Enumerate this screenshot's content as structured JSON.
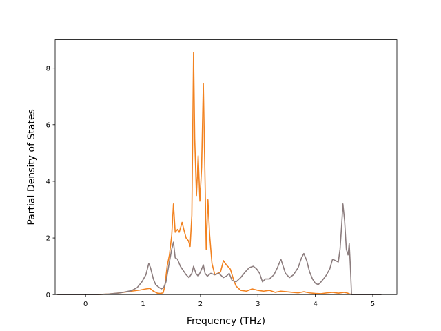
{
  "chart_data": {
    "type": "line",
    "title": "",
    "xlabel": "Frequency (THz)",
    "ylabel": "Partial Density of States",
    "xlim": [
      -0.53,
      5.42
    ],
    "ylim": [
      0,
      9.0
    ],
    "xticks": [
      0,
      1,
      2,
      3,
      4,
      5
    ],
    "yticks": [
      0,
      2,
      4,
      6,
      8
    ],
    "grid": false,
    "legend": "none",
    "series": [
      {
        "color": "#f28220",
        "points": [
          [
            -0.49,
            0
          ],
          [
            0.0,
            0
          ],
          [
            0.2,
            0.0
          ],
          [
            0.4,
            0.02
          ],
          [
            0.6,
            0.06
          ],
          [
            0.8,
            0.12
          ],
          [
            0.95,
            0.16
          ],
          [
            1.05,
            0.2
          ],
          [
            1.12,
            0.22
          ],
          [
            1.18,
            0.12
          ],
          [
            1.25,
            0.05
          ],
          [
            1.3,
            0.04
          ],
          [
            1.35,
            0.06
          ],
          [
            1.38,
            0.3
          ],
          [
            1.42,
            1.0
          ],
          [
            1.46,
            1.4
          ],
          [
            1.5,
            2.1
          ],
          [
            1.53,
            3.2
          ],
          [
            1.56,
            2.2
          ],
          [
            1.6,
            2.3
          ],
          [
            1.63,
            2.2
          ],
          [
            1.68,
            2.55
          ],
          [
            1.71,
            2.3
          ],
          [
            1.75,
            2.0
          ],
          [
            1.79,
            1.9
          ],
          [
            1.82,
            1.7
          ],
          [
            1.85,
            2.8
          ],
          [
            1.88,
            8.55
          ],
          [
            1.9,
            5.5
          ],
          [
            1.93,
            3.5
          ],
          [
            1.96,
            4.9
          ],
          [
            1.99,
            3.3
          ],
          [
            2.02,
            4.5
          ],
          [
            2.05,
            7.45
          ],
          [
            2.08,
            4.0
          ],
          [
            2.1,
            1.6
          ],
          [
            2.13,
            3.35
          ],
          [
            2.16,
            2.1
          ],
          [
            2.2,
            1.1
          ],
          [
            2.25,
            0.7
          ],
          [
            2.3,
            0.75
          ],
          [
            2.35,
            0.8
          ],
          [
            2.4,
            1.2
          ],
          [
            2.45,
            1.05
          ],
          [
            2.52,
            0.9
          ],
          [
            2.58,
            0.5
          ],
          [
            2.62,
            0.3
          ],
          [
            2.7,
            0.15
          ],
          [
            2.8,
            0.12
          ],
          [
            2.9,
            0.2
          ],
          [
            3.0,
            0.15
          ],
          [
            3.1,
            0.12
          ],
          [
            3.2,
            0.15
          ],
          [
            3.3,
            0.08
          ],
          [
            3.4,
            0.12
          ],
          [
            3.5,
            0.1
          ],
          [
            3.6,
            0.08
          ],
          [
            3.7,
            0.06
          ],
          [
            3.8,
            0.1
          ],
          [
            3.9,
            0.06
          ],
          [
            4.0,
            0.04
          ],
          [
            4.1,
            0.03
          ],
          [
            4.2,
            0.06
          ],
          [
            4.3,
            0.08
          ],
          [
            4.4,
            0.05
          ],
          [
            4.5,
            0.08
          ],
          [
            4.55,
            0.06
          ],
          [
            4.6,
            0.02
          ],
          [
            4.65,
            0
          ],
          [
            5.15,
            0
          ]
        ]
      },
      {
        "color": "#8c7d7e",
        "points": [
          [
            -0.49,
            0
          ],
          [
            0.0,
            0
          ],
          [
            0.2,
            0.0
          ],
          [
            0.4,
            0.02
          ],
          [
            0.6,
            0.06
          ],
          [
            0.8,
            0.14
          ],
          [
            0.9,
            0.25
          ],
          [
            0.98,
            0.45
          ],
          [
            1.05,
            0.7
          ],
          [
            1.1,
            1.1
          ],
          [
            1.13,
            0.95
          ],
          [
            1.18,
            0.55
          ],
          [
            1.22,
            0.35
          ],
          [
            1.28,
            0.25
          ],
          [
            1.32,
            0.2
          ],
          [
            1.36,
            0.25
          ],
          [
            1.4,
            0.45
          ],
          [
            1.45,
            1.05
          ],
          [
            1.5,
            1.6
          ],
          [
            1.53,
            1.85
          ],
          [
            1.56,
            1.3
          ],
          [
            1.6,
            1.25
          ],
          [
            1.65,
            1.0
          ],
          [
            1.7,
            0.85
          ],
          [
            1.75,
            0.7
          ],
          [
            1.8,
            0.6
          ],
          [
            1.85,
            0.75
          ],
          [
            1.88,
            1.0
          ],
          [
            1.92,
            0.75
          ],
          [
            1.96,
            0.65
          ],
          [
            2.0,
            0.8
          ],
          [
            2.05,
            1.05
          ],
          [
            2.08,
            0.75
          ],
          [
            2.12,
            0.65
          ],
          [
            2.18,
            0.75
          ],
          [
            2.25,
            0.7
          ],
          [
            2.32,
            0.75
          ],
          [
            2.4,
            0.6
          ],
          [
            2.45,
            0.65
          ],
          [
            2.5,
            0.75
          ],
          [
            2.55,
            0.5
          ],
          [
            2.62,
            0.45
          ],
          [
            2.7,
            0.6
          ],
          [
            2.78,
            0.8
          ],
          [
            2.85,
            0.95
          ],
          [
            2.92,
            1.0
          ],
          [
            2.98,
            0.9
          ],
          [
            3.03,
            0.75
          ],
          [
            3.08,
            0.45
          ],
          [
            3.13,
            0.55
          ],
          [
            3.2,
            0.55
          ],
          [
            3.28,
            0.7
          ],
          [
            3.34,
            0.95
          ],
          [
            3.4,
            1.25
          ],
          [
            3.44,
            1.0
          ],
          [
            3.48,
            0.75
          ],
          [
            3.55,
            0.6
          ],
          [
            3.62,
            0.7
          ],
          [
            3.7,
            0.95
          ],
          [
            3.76,
            1.3
          ],
          [
            3.8,
            1.45
          ],
          [
            3.85,
            1.2
          ],
          [
            3.9,
            0.8
          ],
          [
            3.95,
            0.55
          ],
          [
            4.0,
            0.4
          ],
          [
            4.05,
            0.35
          ],
          [
            4.1,
            0.45
          ],
          [
            4.18,
            0.65
          ],
          [
            4.25,
            0.9
          ],
          [
            4.3,
            1.25
          ],
          [
            4.35,
            1.2
          ],
          [
            4.4,
            1.15
          ],
          [
            4.43,
            1.6
          ],
          [
            4.46,
            2.5
          ],
          [
            4.48,
            3.2
          ],
          [
            4.51,
            2.6
          ],
          [
            4.54,
            1.6
          ],
          [
            4.57,
            1.4
          ],
          [
            4.59,
            1.8
          ],
          [
            4.61,
            1.0
          ],
          [
            4.63,
            0
          ],
          [
            5.15,
            0
          ]
        ]
      }
    ]
  }
}
